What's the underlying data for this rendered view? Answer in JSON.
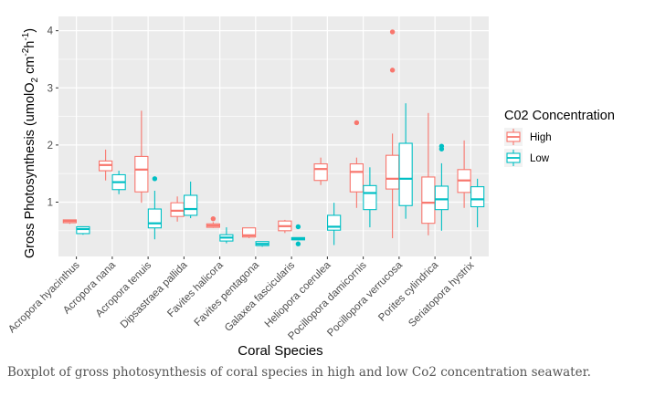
{
  "caption": "Boxplot of gross photosynthesis of coral species in high and low Co2 concentration seawater.",
  "colors": {
    "panel": "#EBEBEB",
    "grid": "#FFFFFF",
    "high": "#F8766D",
    "low": "#00BFC4",
    "axis_text": "#4D4D4D"
  },
  "chart_data": {
    "type": "boxplot",
    "title": "",
    "xlabel": "Coral Species",
    "ylabel_parts": {
      "main": "Gross Photosynthesis (umolO",
      "sub2": "2",
      "mid": " cm",
      "sup1": "-2",
      "mid2": "h",
      "sup2": "-1",
      "end": ")"
    },
    "ylim": [
      0.05,
      4.25
    ],
    "yticks": [
      1,
      2,
      3,
      4
    ],
    "grid": true,
    "legend": {
      "title": "C02 Concentration",
      "position": "right",
      "entries": [
        {
          "name": "High",
          "key": "high"
        },
        {
          "name": "Low",
          "key": "low"
        }
      ]
    },
    "categories": [
      "Acropora hyacinthus",
      "Acropora nana",
      "Acropora tenuis",
      "Dipsastraea pallida",
      "Favites halicora",
      "Favites pentagona",
      "Galaxea fascicularis",
      "Heliopora coerulea",
      "Pocillopora damicornis",
      "Pocillopora verrucosa",
      "Porites cylindrica",
      "Seriatopora hystrix"
    ],
    "series": [
      {
        "name": "High",
        "key": "high",
        "boxes": [
          {
            "min": 0.62,
            "q1": 0.64,
            "median": 0.67,
            "q3": 0.69,
            "max": 0.69,
            "outliers": []
          },
          {
            "min": 1.38,
            "q1": 1.55,
            "median": 1.65,
            "q3": 1.72,
            "max": 1.92,
            "outliers": []
          },
          {
            "min": 0.99,
            "q1": 1.18,
            "median": 1.57,
            "q3": 1.8,
            "max": 2.6,
            "outliers": []
          },
          {
            "min": 0.66,
            "q1": 0.75,
            "median": 0.85,
            "q3": 0.99,
            "max": 1.1,
            "outliers": []
          },
          {
            "min": 0.55,
            "q1": 0.56,
            "median": 0.59,
            "q3": 0.62,
            "max": 0.65,
            "outliers": [
              0.71
            ]
          },
          {
            "min": 0.37,
            "q1": 0.39,
            "median": 0.42,
            "q3": 0.55,
            "max": 0.55,
            "outliers": []
          },
          {
            "min": 0.46,
            "q1": 0.5,
            "median": 0.58,
            "q3": 0.67,
            "max": 0.69,
            "outliers": []
          },
          {
            "min": 1.3,
            "q1": 1.38,
            "median": 1.58,
            "q3": 1.67,
            "max": 1.78,
            "outliers": []
          },
          {
            "min": 0.9,
            "q1": 1.18,
            "median": 1.53,
            "q3": 1.67,
            "max": 1.78,
            "outliers": [
              2.39
            ]
          },
          {
            "min": 0.37,
            "q1": 1.23,
            "median": 1.41,
            "q3": 1.82,
            "max": 2.2,
            "outliers": [
              3.31,
              3.98
            ]
          },
          {
            "min": 0.42,
            "q1": 0.63,
            "median": 0.99,
            "q3": 1.44,
            "max": 2.56,
            "outliers": []
          },
          {
            "min": 0.9,
            "q1": 1.17,
            "median": 1.38,
            "q3": 1.57,
            "max": 2.08,
            "outliers": []
          }
        ]
      },
      {
        "name": "Low",
        "key": "low",
        "boxes": [
          {
            "min": 0.43,
            "q1": 0.45,
            "median": 0.53,
            "q3": 0.57,
            "max": 0.57,
            "outliers": []
          },
          {
            "min": 1.14,
            "q1": 1.22,
            "median": 1.35,
            "q3": 1.48,
            "max": 1.55,
            "outliers": []
          },
          {
            "min": 0.35,
            "q1": 0.55,
            "median": 0.63,
            "q3": 0.88,
            "max": 1.2,
            "outliers": [
              1.41
            ]
          },
          {
            "min": 0.72,
            "q1": 0.77,
            "median": 0.88,
            "q3": 1.12,
            "max": 1.36,
            "outliers": []
          },
          {
            "min": 0.28,
            "q1": 0.32,
            "median": 0.38,
            "q3": 0.43,
            "max": 0.56,
            "outliers": []
          },
          {
            "min": 0.22,
            "q1": 0.24,
            "median": 0.27,
            "q3": 0.31,
            "max": 0.31,
            "outliers": []
          },
          {
            "min": 0.33,
            "q1": 0.34,
            "median": 0.36,
            "q3": 0.38,
            "max": 0.38,
            "outliers": [
              0.27,
              0.57
            ]
          },
          {
            "min": 0.25,
            "q1": 0.51,
            "median": 0.57,
            "q3": 0.77,
            "max": 0.99,
            "outliers": []
          },
          {
            "min": 0.56,
            "q1": 0.87,
            "median": 1.16,
            "q3": 1.29,
            "max": 1.61,
            "outliers": []
          },
          {
            "min": 0.71,
            "q1": 0.94,
            "median": 1.41,
            "q3": 2.03,
            "max": 2.73,
            "outliers": []
          },
          {
            "min": 0.5,
            "q1": 0.87,
            "median": 1.05,
            "q3": 1.28,
            "max": 1.68,
            "outliers": [
              1.93,
              1.98
            ]
          },
          {
            "min": 0.56,
            "q1": 0.92,
            "median": 1.05,
            "q3": 1.27,
            "max": 1.41,
            "outliers": []
          }
        ]
      }
    ]
  }
}
